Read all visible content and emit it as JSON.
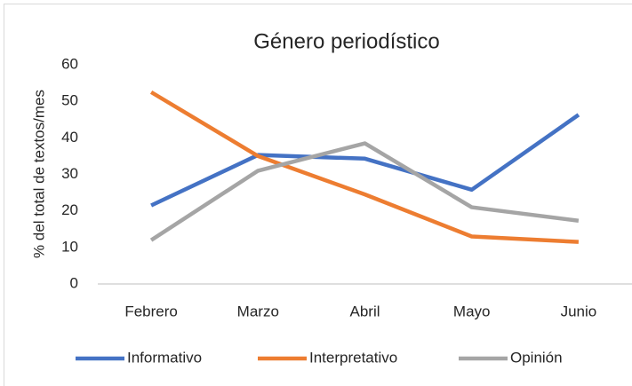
{
  "chart_data": {
    "type": "line",
    "title": "Género periodístico",
    "y_label": "% del total de textos/mes",
    "categories": [
      "Febrero",
      "Marzo",
      "Abril",
      "Mayo",
      "Junio"
    ],
    "series": [
      {
        "name": "Informativo",
        "color": "#4472c4",
        "values": [
          21.5,
          35.3,
          34.3,
          25.8,
          46.3
        ]
      },
      {
        "name": "Interpretativo",
        "color": "#ed7d31",
        "values": [
          52.5,
          35,
          24.5,
          13,
          11.5
        ]
      },
      {
        "name": "Opinión",
        "color": "#a5a5a5",
        "values": [
          12,
          31,
          38.5,
          21,
          17.3
        ]
      }
    ],
    "ylim": [
      0,
      60
    ],
    "yticks": [
      0,
      10,
      20,
      30,
      40,
      50,
      60
    ],
    "grid": false,
    "legend": "bottom"
  }
}
